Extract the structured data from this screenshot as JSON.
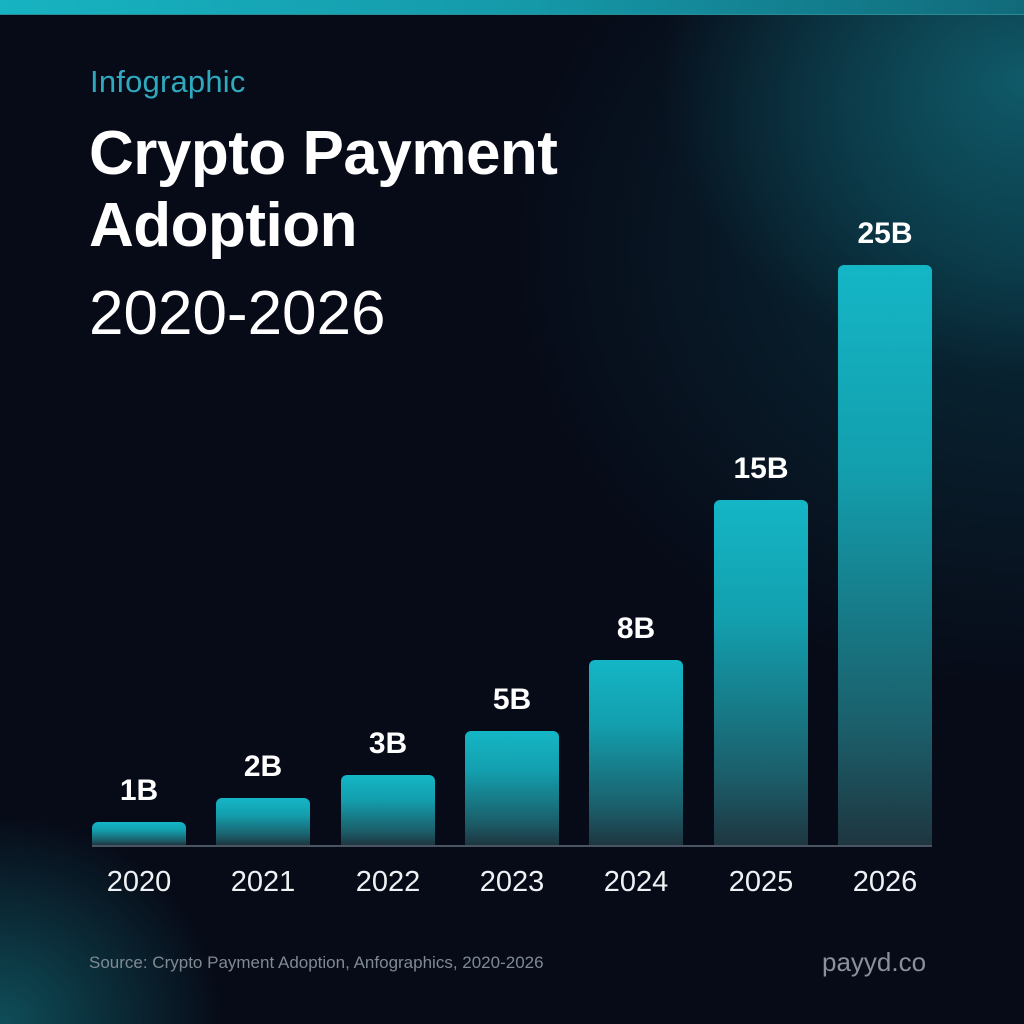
{
  "header": {
    "eyebrow": "Infographic",
    "title_line1": "Crypto Payment",
    "title_line2": "Adoption",
    "subtitle": "2020-2026"
  },
  "footer": {
    "source": "Source: Crypto Payment Adoption, Anfographics, 2020-2026",
    "brand": "payyd.co"
  },
  "colors": {
    "accent": "#17b3c2",
    "eyebrow": "#2fa9bd",
    "background": "#070a17",
    "bar_top": "#14b6c6",
    "bar_bottom": "#1e3640",
    "axis": "#4a5563"
  },
  "chart_data": {
    "type": "bar",
    "title": "Crypto Payment Adoption 2020-2026",
    "subtitle": "Infographic",
    "xlabel": "",
    "ylabel": "",
    "categories": [
      "2020",
      "2021",
      "2022",
      "2023",
      "2024",
      "2025",
      "2026"
    ],
    "values": [
      1,
      2,
      3,
      5,
      8,
      15,
      25
    ],
    "value_labels": [
      "1B",
      "2B",
      "3B",
      "5B",
      "8B",
      "15B",
      "25B"
    ],
    "unit": "B",
    "grid": false,
    "legend": null,
    "ylim": [
      0,
      25
    ]
  }
}
